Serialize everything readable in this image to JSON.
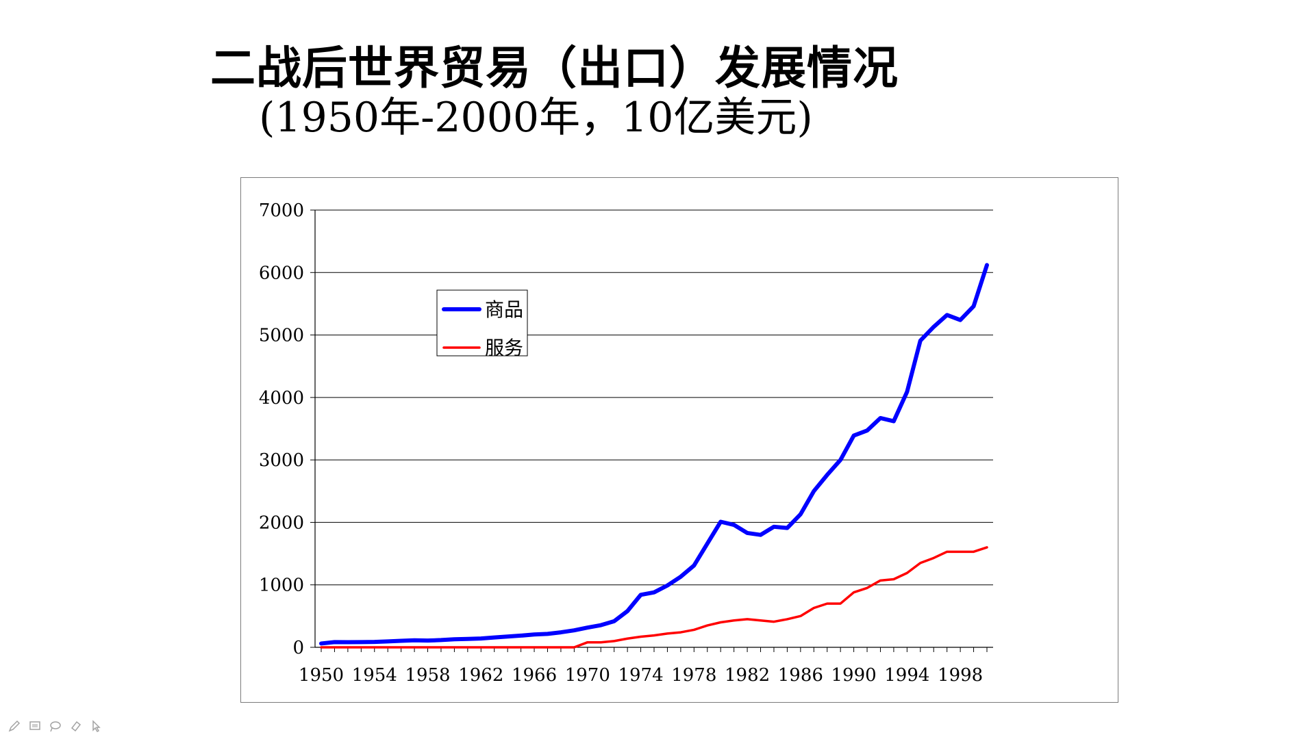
{
  "slide": {
    "title": "二战后世界贸易（出口）发展情况",
    "subtitle": "(1950年-2000年，10亿美元)"
  },
  "toolbar": {
    "icons": [
      "pen-icon",
      "screen-icon",
      "lasso-icon",
      "eraser-icon",
      "pointer-icon"
    ]
  },
  "colors": {
    "goods": "#0000ff",
    "services": "#ff0000",
    "grid": "#000000",
    "frame": "#7a7a7a"
  },
  "chart_data": {
    "type": "line",
    "title": "",
    "xlabel": "",
    "ylabel": "",
    "ylim": [
      0,
      7000
    ],
    "yticks": [
      "0",
      "1000",
      "2000",
      "3000",
      "4000",
      "5000",
      "6000",
      "7000"
    ],
    "xticks": [
      "1950",
      "1954",
      "1958",
      "1962",
      "1966",
      "1970",
      "1974",
      "1978",
      "1982",
      "1986",
      "1990",
      "1994",
      "1998"
    ],
    "x": [
      1950,
      1951,
      1952,
      1953,
      1954,
      1955,
      1956,
      1957,
      1958,
      1959,
      1960,
      1961,
      1962,
      1963,
      1964,
      1965,
      1966,
      1967,
      1968,
      1969,
      1970,
      1971,
      1972,
      1973,
      1974,
      1975,
      1976,
      1977,
      1978,
      1979,
      1980,
      1981,
      1982,
      1983,
      1984,
      1985,
      1986,
      1987,
      1988,
      1989,
      1990,
      1991,
      1992,
      1993,
      1994,
      1995,
      1996,
      1997,
      1998,
      1999,
      2000
    ],
    "legend_position": "upper-left",
    "series": [
      {
        "name": "商品",
        "color": "#0000ff",
        "values": [
          61,
          84,
          82,
          84,
          86,
          94,
          104,
          112,
          108,
          116,
          129,
          134,
          141,
          157,
          173,
          187,
          205,
          215,
          240,
          272,
          316,
          354,
          418,
          580,
          840,
          880,
          990,
          1130,
          1310,
          1660,
          2010,
          1960,
          1830,
          1800,
          1930,
          1910,
          2130,
          2500,
          2760,
          3000,
          3390,
          3470,
          3670,
          3620,
          4090,
          4910,
          5130,
          5320,
          5240,
          5460,
          6120
        ]
      },
      {
        "name": "服务",
        "color": "#ff0000",
        "values": [
          0,
          0,
          0,
          0,
          0,
          0,
          0,
          0,
          0,
          0,
          0,
          0,
          0,
          0,
          0,
          0,
          0,
          0,
          0,
          0,
          80,
          80,
          100,
          140,
          170,
          190,
          220,
          240,
          280,
          350,
          400,
          430,
          450,
          430,
          410,
          450,
          500,
          630,
          700,
          700,
          880,
          950,
          1070,
          1090,
          1190,
          1350,
          1430,
          1530,
          1530,
          1530,
          1600
        ]
      }
    ]
  }
}
